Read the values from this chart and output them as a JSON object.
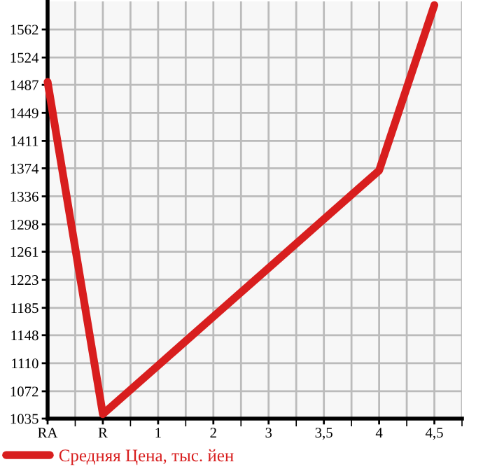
{
  "chart_data": {
    "type": "line",
    "categories": [
      "RA",
      "R",
      "1",
      "2",
      "3",
      "3,5",
      "4",
      "4,5"
    ],
    "series": [
      {
        "name": "Средняя Цена, тыс. йен",
        "color": "#d81e1e",
        "values": [
          1491,
          1041,
          1107,
          1173,
          1239,
          1305,
          1371,
          1595
        ]
      }
    ],
    "ylim": [
      1035,
      1600
    ],
    "yticks": [
      1035,
      1072,
      1110,
      1148,
      1185,
      1223,
      1261,
      1298,
      1336,
      1374,
      1411,
      1449,
      1487,
      1524,
      1562
    ],
    "grid": true,
    "legend": "bottom left",
    "marker": "none",
    "line_style": "solid"
  }
}
